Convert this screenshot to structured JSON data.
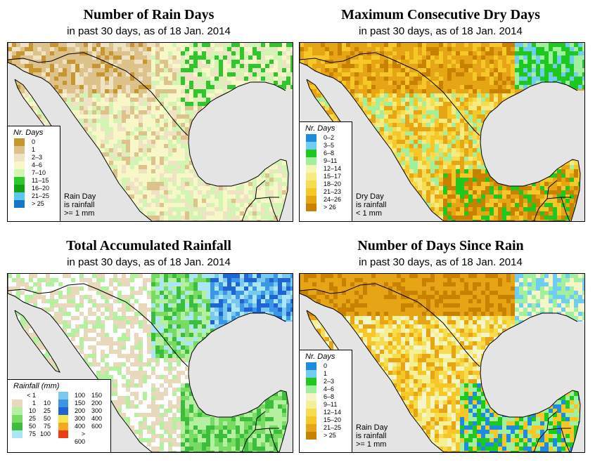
{
  "date_prefix": "in past 30 days, as of",
  "date": "18 Jan. 2014",
  "panels": [
    {
      "title": "Number of Rain Days",
      "subtitle": "in past 30 days, as of  18 Jan. 2014",
      "legend_title": "Nr. Days",
      "legend": [
        {
          "label": "0",
          "color": "#c8962e"
        },
        {
          "label": "1",
          "color": "#ddc28c"
        },
        {
          "label": "2–3",
          "color": "#f0e2c4"
        },
        {
          "label": "4–6",
          "color": "#f7f7c8"
        },
        {
          "label": "7–10",
          "color": "#d2f5b4"
        },
        {
          "label": "11–15",
          "color": "#2cc82c"
        },
        {
          "label": "16–20",
          "color": "#14a014"
        },
        {
          "label": "21–25",
          "color": "#5ac8f0"
        },
        {
          "label": "> 25",
          "color": "#1478c8"
        }
      ],
      "note": [
        "Rain Day",
        "is rainfall",
        ">= 1 mm"
      ]
    },
    {
      "title": "Maximum Consecutive Dry Days",
      "subtitle": "in past 30 days, as of  18 Jan. 2014",
      "legend_title": "Nr. Days",
      "legend": [
        {
          "label": "0–2",
          "color": "#1e8cdc"
        },
        {
          "label": "3–5",
          "color": "#6ecdf0"
        },
        {
          "label": "6–8",
          "color": "#1ec81e"
        },
        {
          "label": "9–11",
          "color": "#a0f0a0"
        },
        {
          "label": "12–14",
          "color": "#f5f5b4"
        },
        {
          "label": "15–17",
          "color": "#f5eb82"
        },
        {
          "label": "18–20",
          "color": "#f5dc50"
        },
        {
          "label": "21–23",
          "color": "#f5c828"
        },
        {
          "label": "24–26",
          "color": "#e6a514"
        },
        {
          "label": "> 26",
          "color": "#c88200"
        }
      ],
      "note": [
        "Dry Day",
        "is rainfall",
        "< 1 mm"
      ]
    },
    {
      "title": "Total Accumulated Rainfall",
      "subtitle": "in past 30 days, as of  18 Jan. 2014",
      "legend_title": "Rainfall (mm)",
      "legend_left": [
        {
          "lo": "< 1",
          "hi": "",
          "color": "#ffffff"
        },
        {
          "lo": "1",
          "hi": "10",
          "color": "#e8d8bc"
        },
        {
          "lo": "10",
          "hi": "25",
          "color": "#b4f0a0"
        },
        {
          "lo": "25",
          "hi": "50",
          "color": "#78dc64"
        },
        {
          "lo": "50",
          "hi": "75",
          "color": "#3cbe3c"
        },
        {
          "lo": "75",
          "hi": "100",
          "color": "#aae6f5"
        }
      ],
      "legend_right": [
        {
          "lo": "100",
          "hi": "150",
          "color": "#78c8f0"
        },
        {
          "lo": "150",
          "hi": "200",
          "color": "#3c96e6"
        },
        {
          "lo": "200",
          "hi": "300",
          "color": "#1e64d2"
        },
        {
          "lo": "300",
          "hi": "400",
          "color": "#f5e650"
        },
        {
          "lo": "400",
          "hi": "600",
          "color": "#f5aa1e"
        },
        {
          "lo": "> 600",
          "hi": "",
          "color": "#f03c14"
        }
      ]
    },
    {
      "title": "Number of Days Since Rain",
      "subtitle": "in past 30 days, as of  18 Jan. 2014",
      "legend_title": "Nr. Days",
      "legend": [
        {
          "label": "0",
          "color": "#1e8cdc"
        },
        {
          "label": "1",
          "color": "#6ecdf0"
        },
        {
          "label": "2–3",
          "color": "#1ec81e"
        },
        {
          "label": "4–6",
          "color": "#a0f0a0"
        },
        {
          "label": "6–8",
          "color": "#f5f5c8"
        },
        {
          "label": "9–11",
          "color": "#f5f096"
        },
        {
          "label": "12–14",
          "color": "#f5dc50"
        },
        {
          "label": "15–20",
          "color": "#f5c828"
        },
        {
          "label": "21–25",
          "color": "#e6a514"
        },
        {
          "label": "> 25",
          "color": "#c88200"
        }
      ],
      "note": [
        "Rain Day",
        "is rainfall",
        ">= 1 mm"
      ]
    }
  ]
}
